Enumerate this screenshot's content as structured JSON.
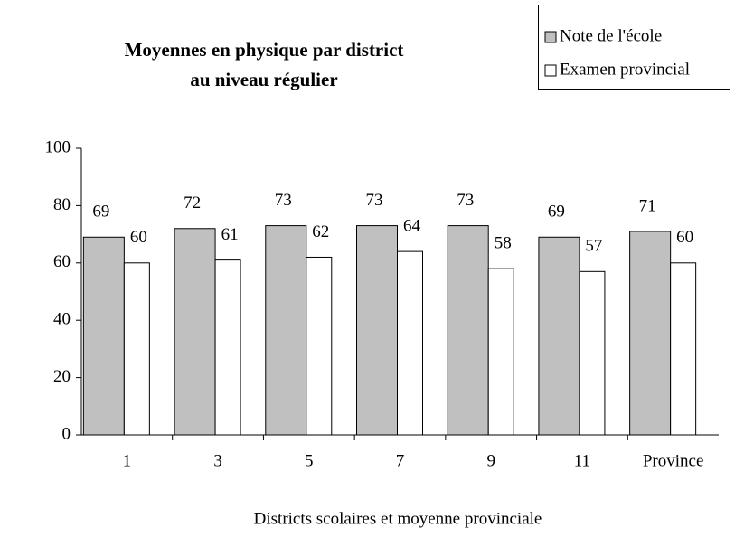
{
  "chart_data": {
    "type": "bar",
    "title": [
      "Moyennes en physique par district",
      "au niveau régulier"
    ],
    "x_label": "Districts scolaires et moyenne provinciale",
    "categories": [
      "1",
      "3",
      "5",
      "7",
      "9",
      "11",
      "Province"
    ],
    "series": [
      {
        "name": "Note de l'école",
        "color": "#c0c0c0",
        "values": [
          69,
          72,
          73,
          73,
          73,
          69,
          71
        ]
      },
      {
        "name": "Examen provincial",
        "color": "#ffffff",
        "values": [
          60,
          61,
          62,
          64,
          58,
          57,
          60
        ]
      }
    ],
    "ylim": [
      0,
      100
    ],
    "yticks": [
      0,
      20,
      40,
      60,
      80,
      100
    ],
    "grid": false,
    "legend": "top-right"
  }
}
